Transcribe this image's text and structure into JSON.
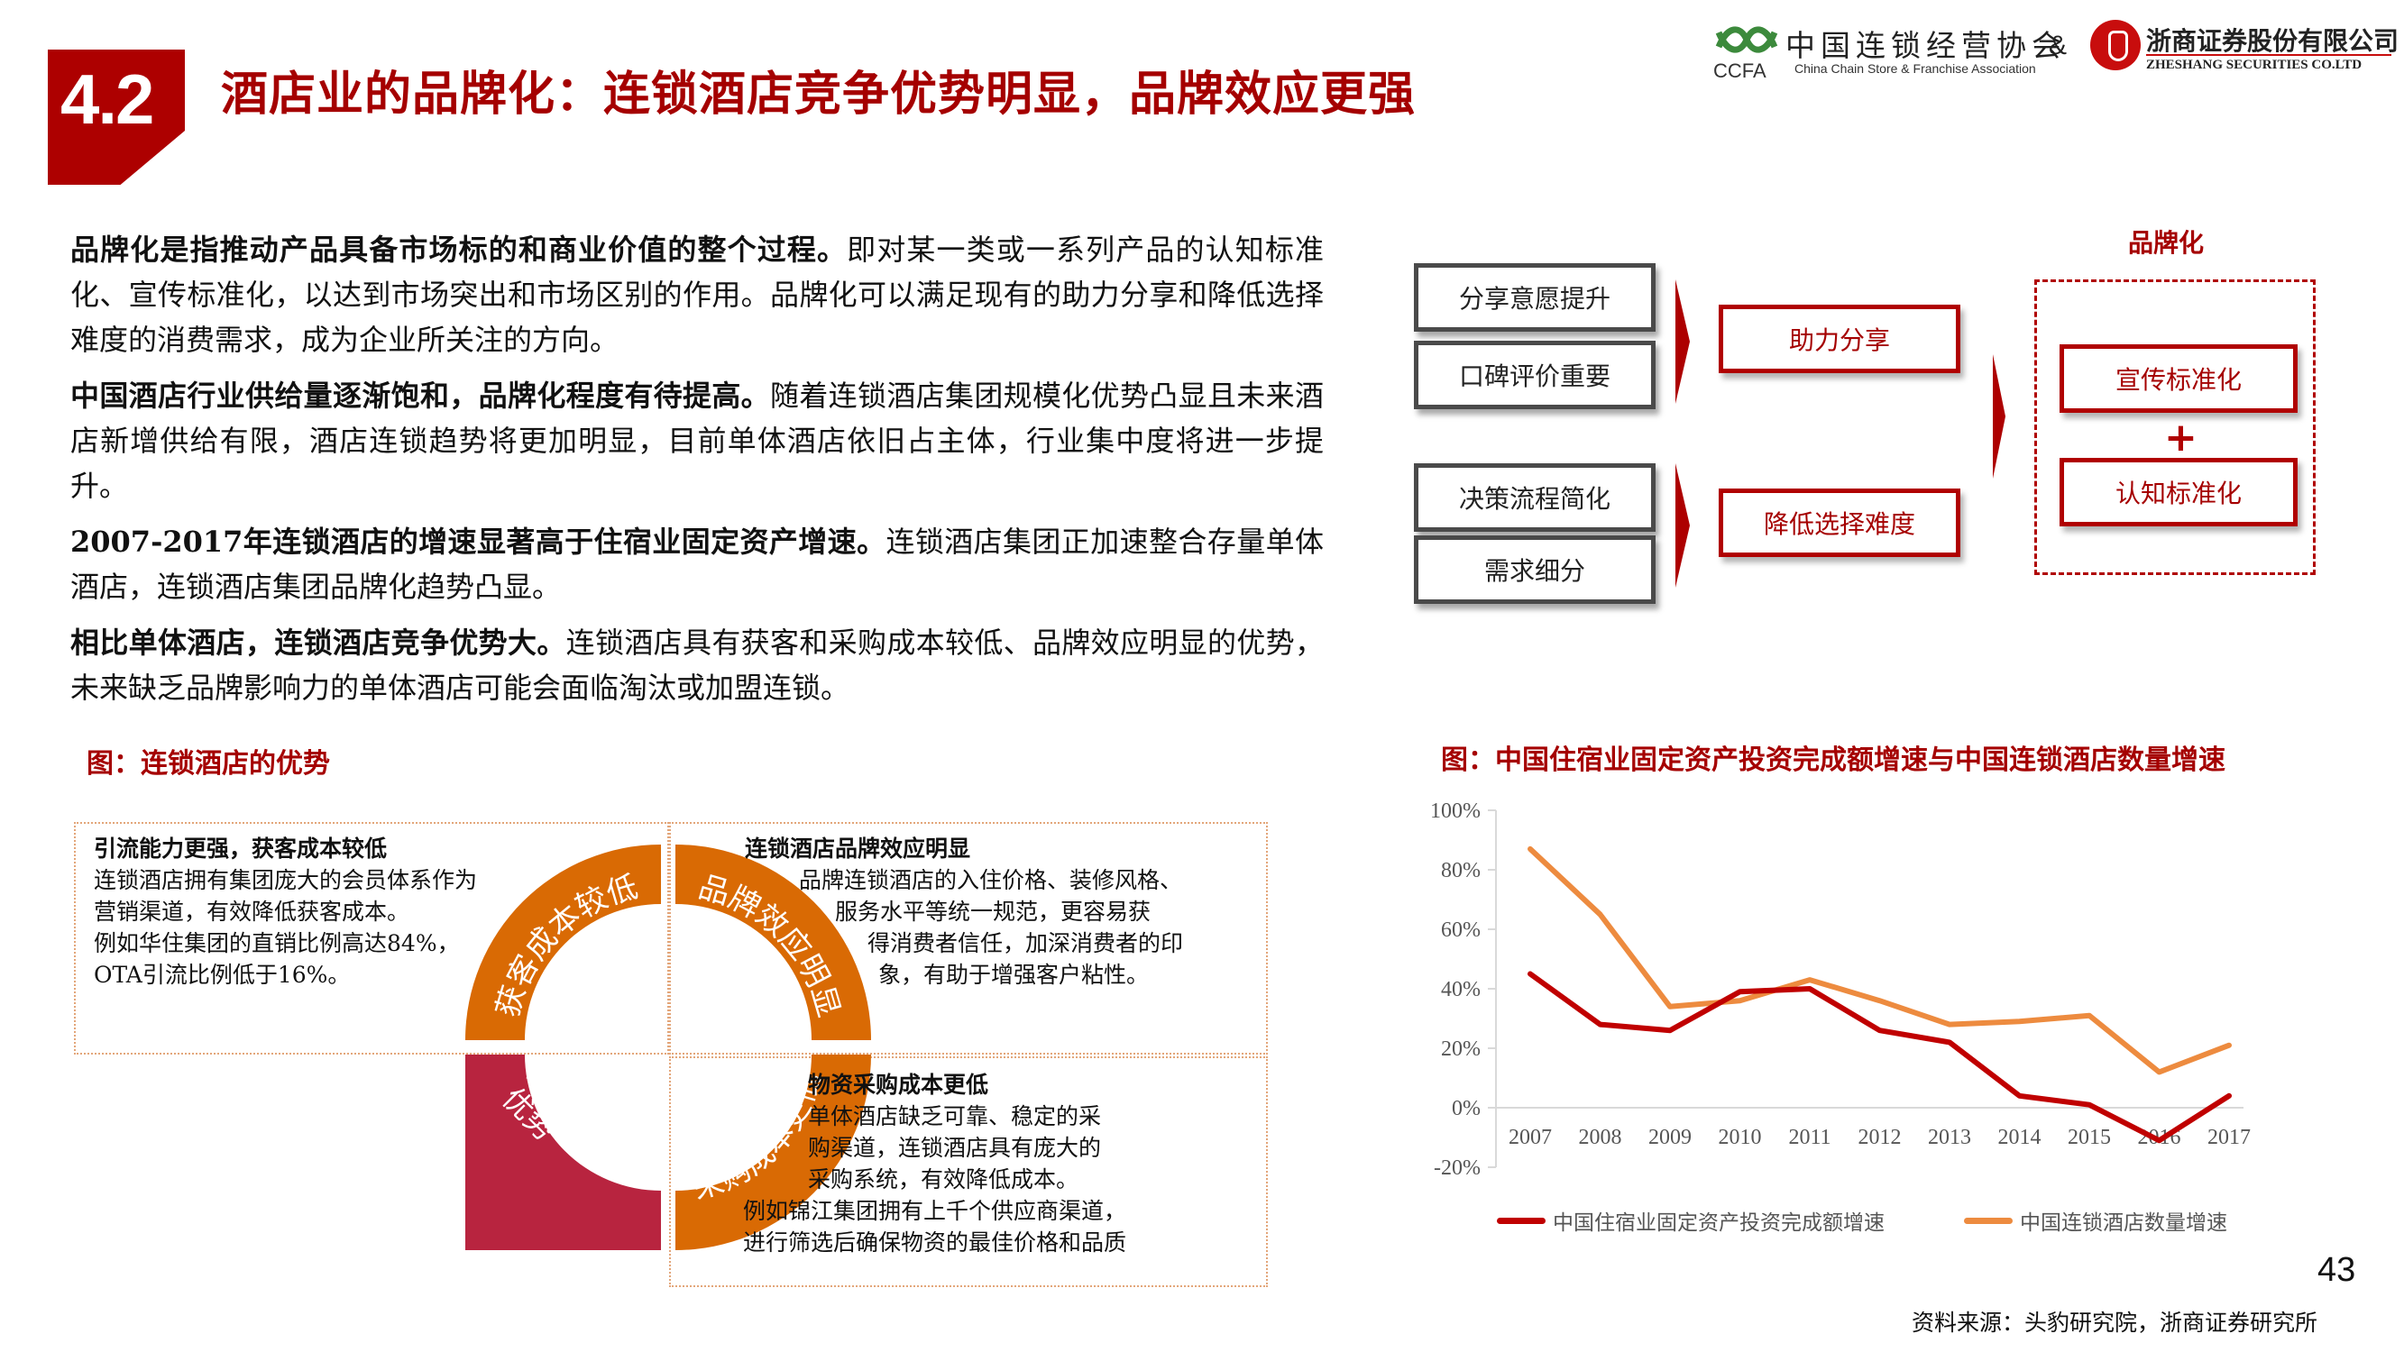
{
  "header": {
    "section_number": "4.2",
    "title": "酒店业的品牌化：连锁酒店竞争优势明显，品牌效应更强",
    "logos": {
      "ccfa_cn": "中国连锁经营协会",
      "ccfa_abbr": "CCFA",
      "ccfa_en": "China Chain Store & Franchise Association",
      "ampersand": "&",
      "zheshang_cn": "浙商证券股份有限公司",
      "zheshang_en": "ZHESHANG SECURITIES CO.LTD"
    }
  },
  "intro": [
    {
      "bold": "品牌化是指推动产品具备市场标的和商业价值的整个过程。",
      "text": "即对某一类或一系列产品的认知标准化、宣传标准化，以达到市场突出和市场区别的作用。品牌化可以满足现有的助力分享和降低选择难度的消费需求，成为企业所关注的方向。"
    },
    {
      "bold": "中国酒店行业供给量逐渐饱和，品牌化程度有待提高。",
      "text": "随着连锁酒店集团规模化优势凸显且未来酒店新增供给有限，酒店连锁趋势将更加明显，目前单体酒店依旧占主体，行业集中度将进一步提升。"
    },
    {
      "bold": "2007-2017年连锁酒店的增速显著高于住宿业固定资产增速。",
      "text": "连锁酒店集团正加速整合存量单体酒店，连锁酒店集团品牌化趋势凸显。"
    },
    {
      "bold": "相比单体酒店，连锁酒店竞争优势大。",
      "text": "连锁酒店具有获客和采购成本较低、品牌效应明显的优势，未来缺乏品牌影响力的单体酒店可能会面临淘汰或加盟连锁。"
    }
  ],
  "diagram": {
    "title": "品牌化",
    "inputs": [
      "分享意愿提升",
      "口碑评价重要",
      "决策流程简化",
      "需求细分"
    ],
    "middle": [
      "助力分享",
      "降低选择难度"
    ],
    "outputs": [
      "宣传标准化",
      "认知标准化"
    ],
    "plus": "+"
  },
  "advantages": {
    "caption": "图：连锁酒店的优势",
    "center_label": "连锁酒店的优势",
    "ring_labels": [
      "获客成本较低",
      "品牌效应明显",
      "采购成本更低"
    ],
    "boxes": [
      {
        "heading": "引流能力更强，获客成本较低",
        "lines": [
          "连锁酒店拥有集团庞大的会员体系作为",
          "营销渠道，有效降低获客成本。",
          "例如华住集团的直销比例高达84%，",
          "OTA引流比例低于16%。"
        ]
      },
      {
        "heading": "连锁酒店品牌效应明显",
        "lines": [
          "品牌连锁酒店的入住价格、装修风格、",
          "服务水平等统一规范，更容易获",
          "得消费者信任，加深消费者的印",
          "象，有助于增强客户粘性。"
        ]
      },
      {
        "heading": "物资采购成本更低",
        "lines": [
          "单体酒店缺乏可靠、稳定的采",
          "购渠道，连锁酒店具有庞大的",
          "采购系统，有效降低成本。",
          "例如锦江集团拥有上千个供应商渠道，",
          "进行筛选后确保物资的最佳价格和品质"
        ]
      }
    ],
    "colors": {
      "orange": "#d96a04",
      "crimson": "#b8243f"
    }
  },
  "chart_data": {
    "type": "line",
    "title": "图：中国住宿业固定资产投资完成额增速与中国连锁酒店数量增速",
    "x": [
      "2007",
      "2008",
      "2009",
      "2010",
      "2011",
      "2012",
      "2013",
      "2014",
      "2015",
      "2016",
      "2017"
    ],
    "series": [
      {
        "name": "中国住宿业固定资产投资完成额增速",
        "color": "#c00000",
        "values": [
          45,
          28,
          26,
          39,
          40,
          26,
          22,
          4,
          1,
          -11,
          4
        ]
      },
      {
        "name": "中国连锁酒店数量增速",
        "color": "#ed8b3f",
        "values": [
          87,
          65,
          34,
          36,
          43,
          36,
          28,
          29,
          31,
          12,
          21
        ]
      }
    ],
    "yticks": [
      "100%",
      "80%",
      "60%",
      "40%",
      "20%",
      "0%",
      "-20%"
    ],
    "ylim": [
      -20,
      100
    ],
    "xlabel": "",
    "ylabel": "",
    "grid": false,
    "legend_position": "bottom"
  },
  "footer": {
    "page_number": "43",
    "source": "资料来源：头豹研究院，浙商证券研究所"
  }
}
